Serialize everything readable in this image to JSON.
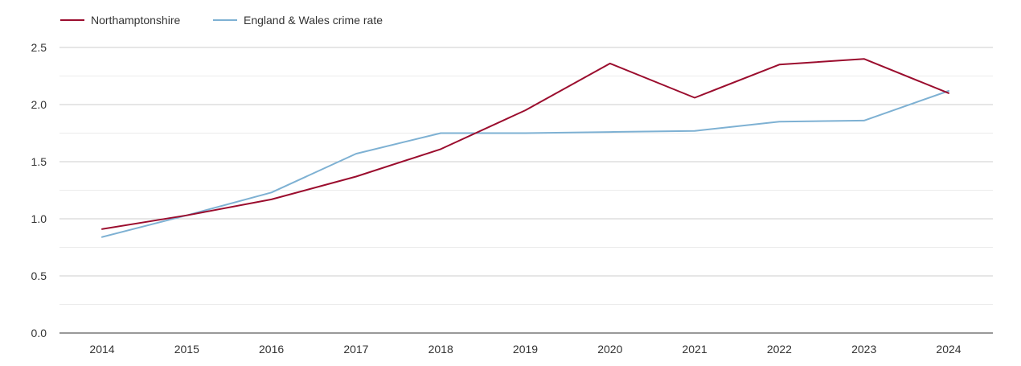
{
  "chart_data": {
    "type": "line",
    "title": "",
    "xlabel": "",
    "ylabel": "",
    "categories": [
      "2014",
      "2015",
      "2016",
      "2017",
      "2018",
      "2019",
      "2020",
      "2021",
      "2022",
      "2023",
      "2024"
    ],
    "ylim": [
      0,
      2.5
    ],
    "yticks": [
      "0.0",
      "0.5",
      "1.0",
      "1.5",
      "2.0",
      "2.5"
    ],
    "grid": true,
    "legend_position": "top-left",
    "series": [
      {
        "name": "Northamptonshire",
        "color": "#9b0d2e",
        "values": [
          0.91,
          1.03,
          1.17,
          1.37,
          1.61,
          1.95,
          2.36,
          2.06,
          2.35,
          2.4,
          2.1
        ]
      },
      {
        "name": "England & Wales crime rate",
        "color": "#7eb1d3",
        "values": [
          0.84,
          1.03,
          1.23,
          1.57,
          1.75,
          1.75,
          1.76,
          1.77,
          1.85,
          1.86,
          2.12
        ]
      }
    ]
  }
}
